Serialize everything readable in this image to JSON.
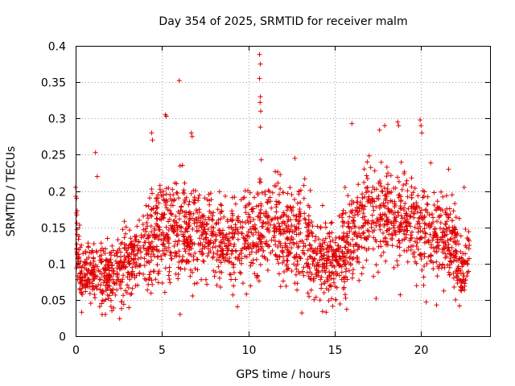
{
  "chart_data": {
    "type": "scatter",
    "title": "Day 354 of 2025, SRMTID for receiver malm",
    "xlabel": "GPS time / hours",
    "ylabel": "SRMTID / TECUs",
    "xlim": [
      0,
      24
    ],
    "ylim": [
      0,
      0.4
    ],
    "xticks": [
      0,
      5,
      10,
      15,
      20
    ],
    "xtick_labels": [
      "0",
      "5",
      "10",
      "15",
      "20"
    ],
    "yticks": [
      0,
      0.05,
      0.1,
      0.15,
      0.2,
      0.25,
      0.3,
      0.35,
      0.4
    ],
    "ytick_labels": [
      "0",
      "0.05",
      "0.1",
      "0.15",
      "0.2",
      "0.25",
      "0.3",
      "0.35",
      "0.4"
    ],
    "grid": true,
    "marker": "+",
    "color": "#e00000",
    "trend_knots": {
      "x": [
        0,
        0.1,
        0.3,
        1,
        2,
        3,
        4,
        4.5,
        5,
        5.5,
        6,
        7,
        8,
        9,
        10,
        10.5,
        11,
        12,
        13,
        14,
        15,
        16,
        17,
        18,
        19,
        20,
        21,
        22,
        22.2,
        22.8
      ],
      "y": [
        0.17,
        0.12,
        0.09,
        0.085,
        0.08,
        0.1,
        0.12,
        0.14,
        0.15,
        0.15,
        0.145,
        0.14,
        0.135,
        0.13,
        0.14,
        0.15,
        0.15,
        0.14,
        0.135,
        0.11,
        0.1,
        0.14,
        0.17,
        0.17,
        0.16,
        0.15,
        0.14,
        0.12,
        0.09,
        0.11
      ],
      "spread": [
        0.04,
        0.035,
        0.03,
        0.03,
        0.03,
        0.035,
        0.04,
        0.05,
        0.05,
        0.05,
        0.045,
        0.045,
        0.04,
        0.04,
        0.045,
        0.05,
        0.045,
        0.045,
        0.045,
        0.04,
        0.04,
        0.05,
        0.05,
        0.05,
        0.045,
        0.045,
        0.045,
        0.04,
        0.035,
        0.035
      ]
    },
    "outliers": [
      {
        "x": 0.0,
        "y": 0.205
      },
      {
        "x": 0.05,
        "y": 0.19
      },
      {
        "x": 1.15,
        "y": 0.253
      },
      {
        "x": 1.25,
        "y": 0.22
      },
      {
        "x": 2.55,
        "y": 0.024
      },
      {
        "x": 2.1,
        "y": 0.035
      },
      {
        "x": 0.35,
        "y": 0.033
      },
      {
        "x": 4.4,
        "y": 0.28
      },
      {
        "x": 4.45,
        "y": 0.27
      },
      {
        "x": 5.2,
        "y": 0.305
      },
      {
        "x": 5.25,
        "y": 0.303
      },
      {
        "x": 6.0,
        "y": 0.352
      },
      {
        "x": 6.7,
        "y": 0.28
      },
      {
        "x": 6.75,
        "y": 0.275
      },
      {
        "x": 6.05,
        "y": 0.03
      },
      {
        "x": 10.65,
        "y": 0.388
      },
      {
        "x": 10.7,
        "y": 0.375
      },
      {
        "x": 10.65,
        "y": 0.355
      },
      {
        "x": 10.7,
        "y": 0.33
      },
      {
        "x": 10.68,
        "y": 0.322
      },
      {
        "x": 10.72,
        "y": 0.31
      },
      {
        "x": 10.7,
        "y": 0.288
      },
      {
        "x": 10.75,
        "y": 0.243
      },
      {
        "x": 16.0,
        "y": 0.293
      },
      {
        "x": 17.6,
        "y": 0.284
      },
      {
        "x": 17.9,
        "y": 0.29
      },
      {
        "x": 18.65,
        "y": 0.295
      },
      {
        "x": 18.7,
        "y": 0.29
      },
      {
        "x": 19.95,
        "y": 0.298
      },
      {
        "x": 20.0,
        "y": 0.29
      },
      {
        "x": 20.05,
        "y": 0.28
      },
      {
        "x": 13.1,
        "y": 0.032
      },
      {
        "x": 14.3,
        "y": 0.034
      },
      {
        "x": 15.7,
        "y": 0.037
      },
      {
        "x": 17.4,
        "y": 0.052
      },
      {
        "x": 18.8,
        "y": 0.057
      },
      {
        "x": 20.3,
        "y": 0.047
      },
      {
        "x": 20.9,
        "y": 0.043
      },
      {
        "x": 22.0,
        "y": 0.05
      },
      {
        "x": 21.6,
        "y": 0.23
      },
      {
        "x": 22.5,
        "y": 0.205
      },
      {
        "x": 12.7,
        "y": 0.245
      }
    ],
    "n_points": 2400
  }
}
